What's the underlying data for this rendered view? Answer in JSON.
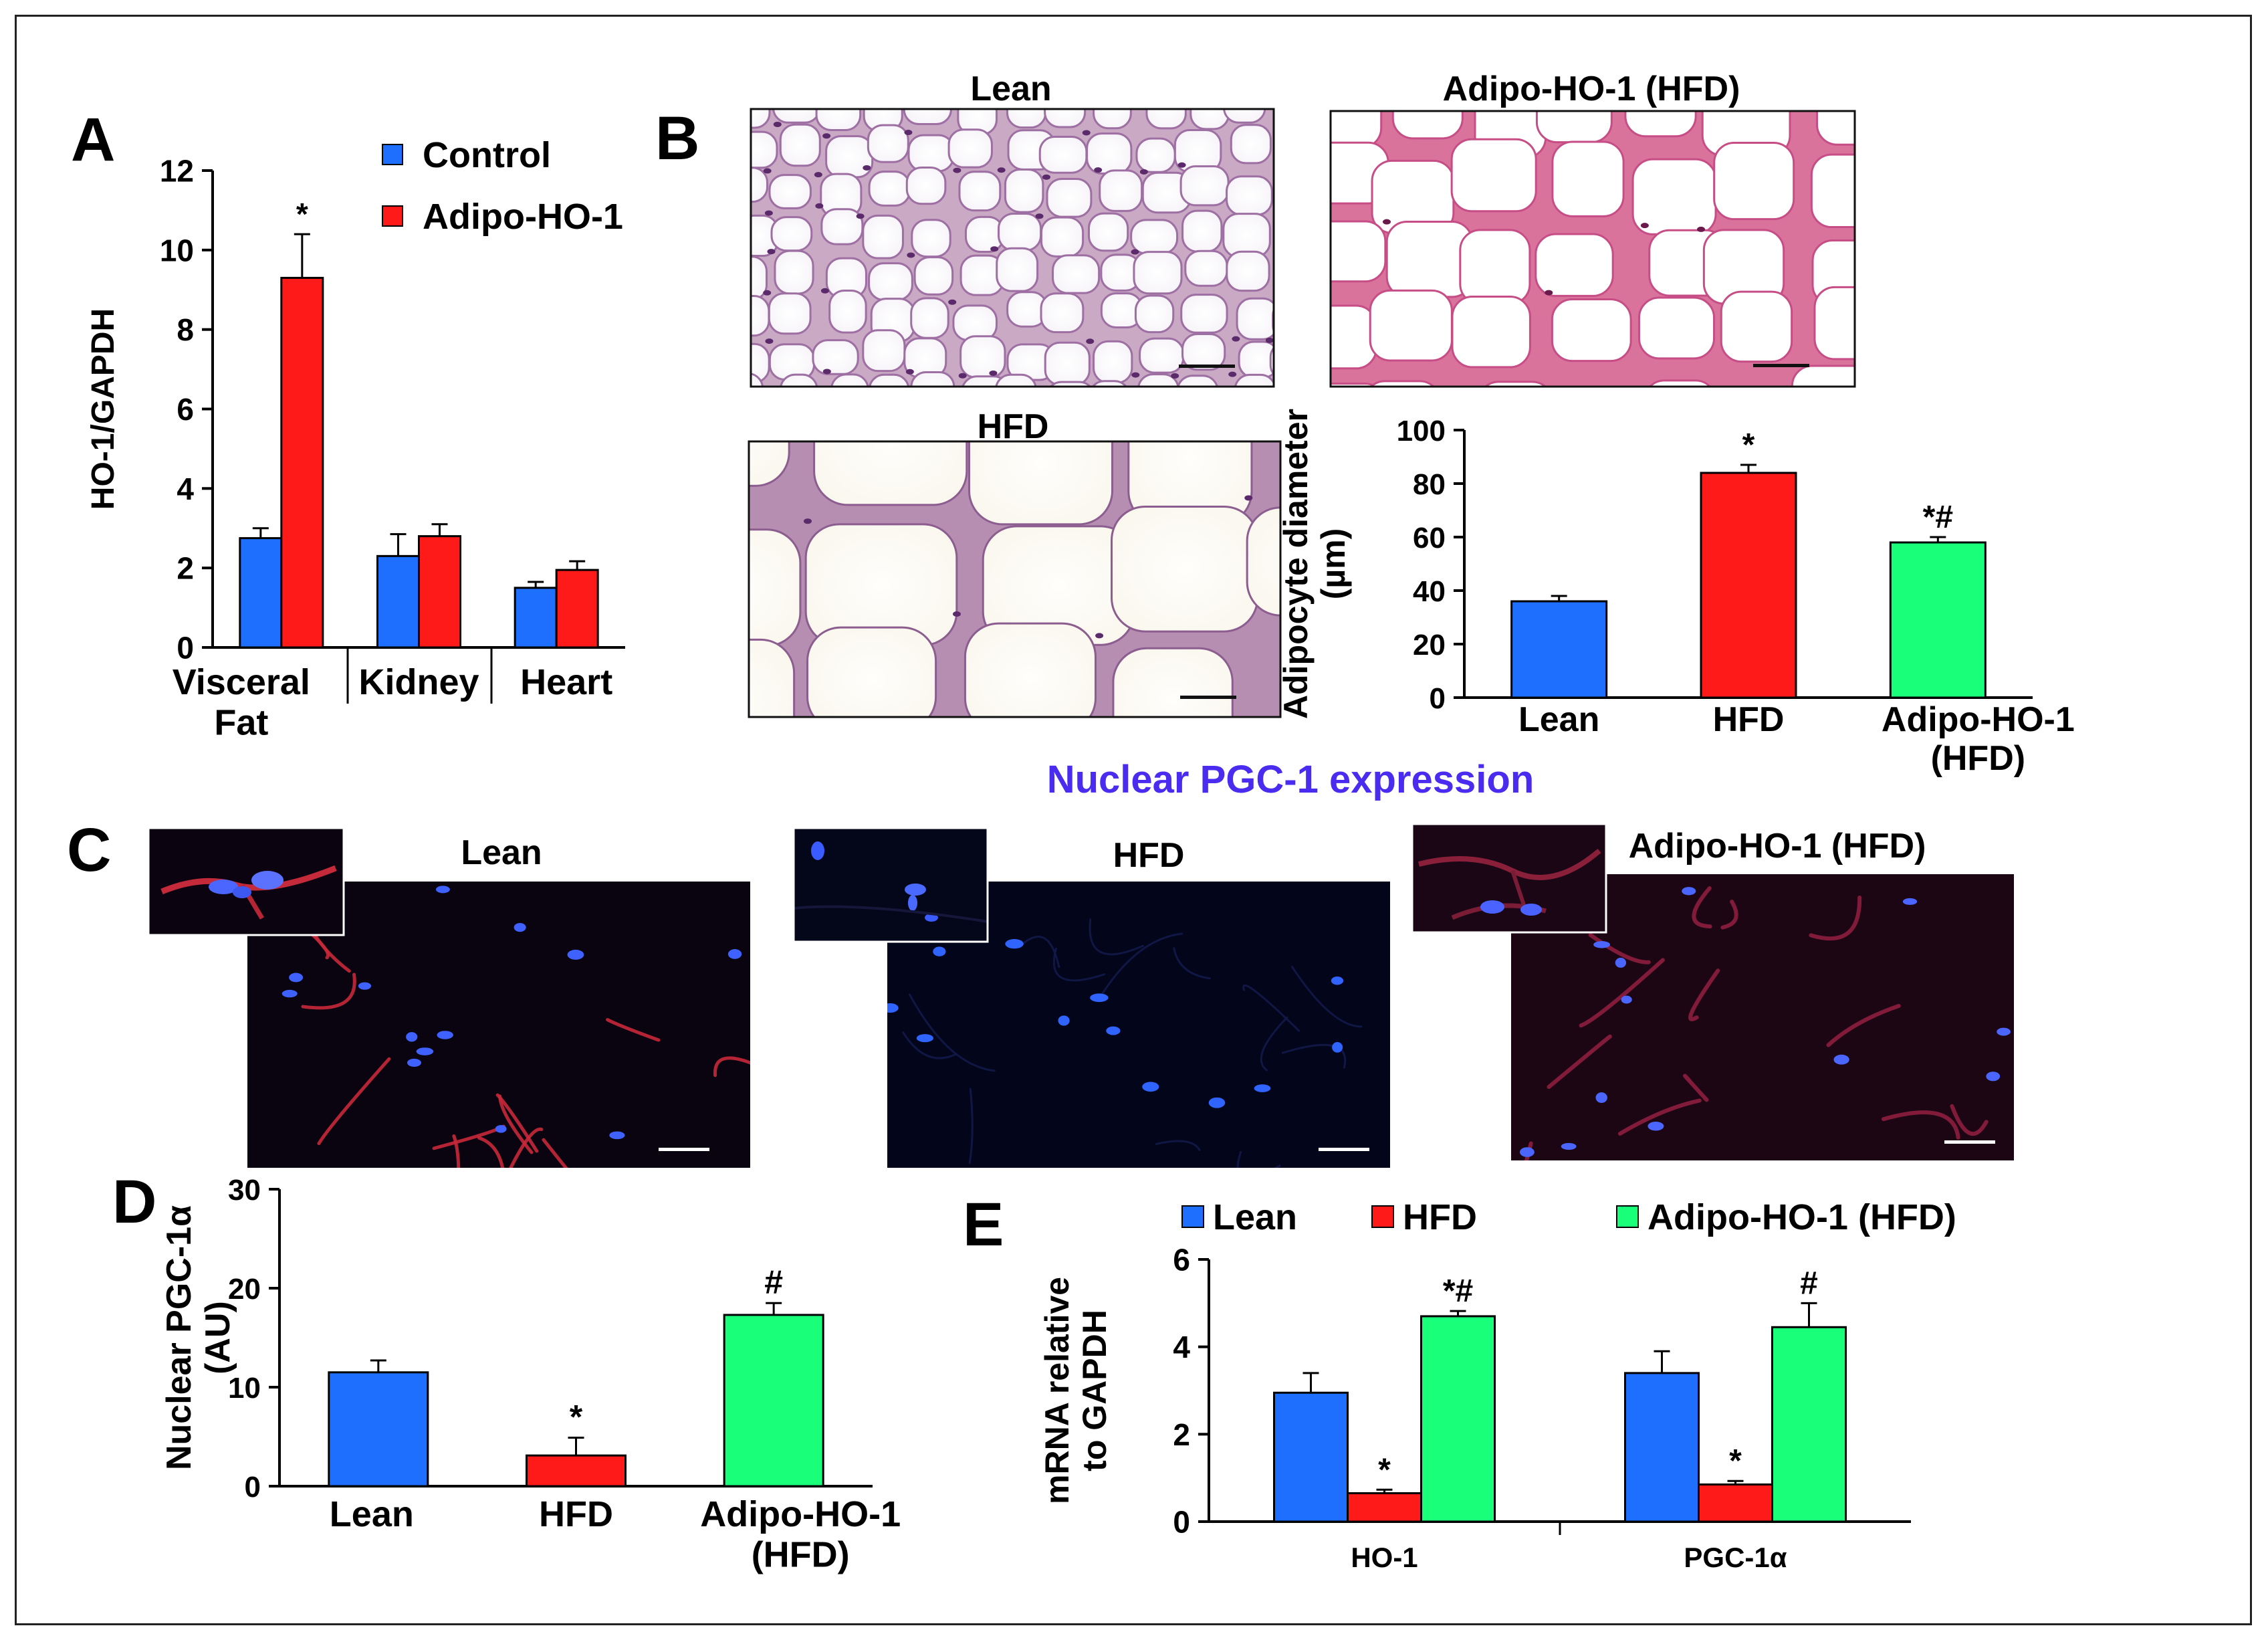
{
  "panelA": {
    "letter": "A",
    "chart_data": {
      "type": "bar",
      "ylabel": "HO-1/GAPDH",
      "ylim": [
        0,
        12
      ],
      "yticks": [
        0,
        2,
        4,
        6,
        8,
        10,
        12
      ],
      "categories": [
        "Visceral Fat",
        "Kidney",
        "Heart"
      ],
      "category_lines": [
        [
          "Visceral",
          "Fat"
        ],
        [
          "Kidney"
        ],
        [
          "Heart"
        ]
      ],
      "series": [
        {
          "name": "Control",
          "color": "#1f6fff",
          "values": [
            2.75,
            2.3,
            1.5
          ],
          "errors": [
            0.25,
            0.55,
            0.15
          ],
          "stars": [
            "",
            "",
            ""
          ]
        },
        {
          "name": "Adipo-HO-1",
          "color": "#ff1a1a",
          "values": [
            9.3,
            2.8,
            1.95
          ],
          "errors": [
            1.1,
            0.3,
            0.22
          ],
          "stars": [
            "*",
            "",
            ""
          ]
        }
      ]
    }
  },
  "panelB": {
    "letter": "B",
    "images": [
      {
        "label": "Lean",
        "kind": "he-small"
      },
      {
        "label": "Adipo-HO-1 (HFD)",
        "kind": "he-medium"
      },
      {
        "label": "HFD",
        "kind": "he-large"
      }
    ],
    "chart_data": {
      "type": "bar",
      "ylabel_lines": [
        "Adipocyte diameter",
        "(µm)"
      ],
      "ylim": [
        0,
        100
      ],
      "yticks": [
        0,
        20,
        40,
        60,
        80,
        100
      ],
      "categories": [
        "Lean",
        "HFD",
        "Adipo-HO-1 (HFD)"
      ],
      "category_lines": [
        [
          "Lean"
        ],
        [
          "HFD"
        ],
        [
          "Adipo-HO-1",
          "(HFD)"
        ]
      ],
      "values": [
        36,
        84,
        58
      ],
      "errors": [
        2,
        3,
        2
      ],
      "colors": [
        "#1f6fff",
        "#ff1a1a",
        "#1aff7a"
      ],
      "stars": [
        "",
        "*",
        "*#"
      ]
    }
  },
  "section_title": "Nuclear PGC-1 expression",
  "panelC": {
    "letter": "C",
    "images": [
      {
        "label": "Lean",
        "kind": "if-red"
      },
      {
        "label": "HFD",
        "kind": "if-blue"
      },
      {
        "label": "Adipo-HO-1 (HFD)",
        "kind": "if-mixed"
      }
    ]
  },
  "panelD": {
    "letter": "D",
    "chart_data": {
      "type": "bar",
      "ylabel_lines": [
        "Nuclear PGC-1α",
        "(AU)"
      ],
      "ylim": [
        0,
        30
      ],
      "yticks": [
        0,
        10,
        20,
        30
      ],
      "categories": [
        "Lean",
        "HFD",
        "Adipo-HO-1 (HFD)"
      ],
      "category_lines": [
        [
          "Lean"
        ],
        [
          "HFD"
        ],
        [
          "Adipo-HO-1",
          "(HFD)"
        ]
      ],
      "values": [
        11.5,
        3.1,
        17.3
      ],
      "errors": [
        1.2,
        1.8,
        1.2
      ],
      "colors": [
        "#1f6fff",
        "#ff1a1a",
        "#1aff7a"
      ],
      "stars": [
        "",
        "*",
        "#"
      ]
    }
  },
  "panelE": {
    "letter": "E",
    "chart_data": {
      "type": "bar",
      "ylabel_lines": [
        "mRNA relative",
        "to GAPDH"
      ],
      "ylim": [
        0,
        6
      ],
      "yticks": [
        0,
        2,
        4,
        6
      ],
      "categories": [
        "HO-1",
        "PGC-1α"
      ],
      "series": [
        {
          "name": "Lean",
          "color": "#1f6fff",
          "values": [
            2.95,
            3.4
          ],
          "errors": [
            0.45,
            0.5
          ],
          "stars": [
            "",
            ""
          ]
        },
        {
          "name": "HFD",
          "color": "#ff1a1a",
          "values": [
            0.65,
            0.85
          ],
          "errors": [
            0.08,
            0.08
          ],
          "stars": [
            "*",
            "*"
          ]
        },
        {
          "name": "Adipo-HO-1 (HFD)",
          "color": "#1aff7a",
          "values": [
            4.7,
            4.45
          ],
          "errors": [
            0.12,
            0.55
          ],
          "stars": [
            "*#",
            "#"
          ]
        }
      ]
    }
  }
}
